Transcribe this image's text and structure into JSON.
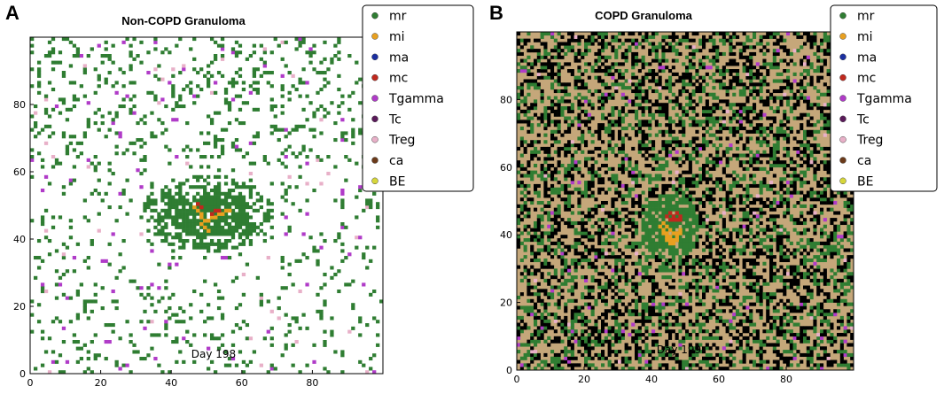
{
  "colors": {
    "mr": "#2f7d32",
    "mi": "#e8a020",
    "ma": "#1b2fa0",
    "mc": "#c0281e",
    "Tgamma": "#b03bc8",
    "Tc": "#5a1a5a",
    "Treg": "#e8b0c8",
    "ca": "#6b3a1a",
    "BE": "#d6d63a",
    "empty_non_copd": "#ffffff",
    "empty_copd": "#c5a77a",
    "void_copd": "#000000"
  },
  "chart_data": [
    {
      "type": "heatmap",
      "panel": "A",
      "title": "Non-COPD Granuloma",
      "annotation": "Day 198",
      "xlabel": "",
      "ylabel": "",
      "xlim": [
        0,
        100
      ],
      "ylim": [
        0,
        100
      ],
      "x_ticks": [
        0,
        20,
        40,
        60,
        80
      ],
      "y_ticks": [
        0,
        20,
        40,
        60,
        80
      ],
      "legend": [
        "mr",
        "mi",
        "ma",
        "mc",
        "Tgamma",
        "Tc",
        "Treg",
        "ca",
        "BE"
      ],
      "legend_position": "top-right",
      "granuloma_center": [
        50,
        47
      ],
      "granuloma_radius": [
        12,
        7
      ],
      "core_cells": {
        "mi": [
          [
            46,
            49
          ],
          [
            47,
            48
          ],
          [
            48,
            47
          ],
          [
            48,
            46
          ],
          [
            49,
            45
          ],
          [
            50,
            45
          ],
          [
            51,
            46
          ],
          [
            52,
            46
          ],
          [
            53,
            47
          ],
          [
            54,
            47
          ],
          [
            55,
            48
          ],
          [
            56,
            48
          ],
          [
            48,
            44
          ],
          [
            49,
            43
          ],
          [
            50,
            42
          ]
        ],
        "mc": [
          [
            47,
            50
          ],
          [
            48,
            49
          ],
          [
            52,
            48
          ],
          [
            53,
            48
          ],
          [
            51,
            47
          ]
        ]
      },
      "background": "sparse_white"
    },
    {
      "type": "heatmap",
      "panel": "B",
      "title": "COPD Granuloma",
      "annotation": "Day 199",
      "xlabel": "",
      "ylabel": "",
      "xlim": [
        0,
        100
      ],
      "ylim": [
        0,
        100
      ],
      "x_ticks": [
        0,
        20,
        40,
        60,
        80
      ],
      "y_ticks": [
        0,
        20,
        40,
        60,
        80
      ],
      "legend": [
        "mr",
        "mi",
        "ma",
        "mc",
        "Tgamma",
        "Tc",
        "Treg",
        "ca",
        "BE"
      ],
      "legend_position": "top-right",
      "granuloma_center": [
        45,
        42
      ],
      "granuloma_radius": [
        9,
        10
      ],
      "core_cells": {
        "mi": [
          [
            42,
            42
          ],
          [
            43,
            41
          ],
          [
            43,
            40
          ],
          [
            44,
            40
          ],
          [
            44,
            39
          ],
          [
            45,
            39
          ],
          [
            45,
            38
          ],
          [
            46,
            38
          ],
          [
            46,
            37
          ],
          [
            47,
            39
          ],
          [
            47,
            38
          ],
          [
            43,
            43
          ],
          [
            44,
            42
          ],
          [
            45,
            41
          ],
          [
            46,
            40
          ],
          [
            47,
            40
          ],
          [
            48,
            41
          ],
          [
            48,
            40
          ],
          [
            44,
            38
          ],
          [
            45,
            37
          ]
        ],
        "mc": [
          [
            44,
            45
          ],
          [
            45,
            46
          ],
          [
            46,
            45
          ],
          [
            47,
            44
          ],
          [
            46,
            44
          ],
          [
            45,
            44
          ],
          [
            47,
            46
          ],
          [
            48,
            45
          ],
          [
            48,
            44
          ]
        ]
      },
      "background": "dense_tan_black"
    }
  ]
}
